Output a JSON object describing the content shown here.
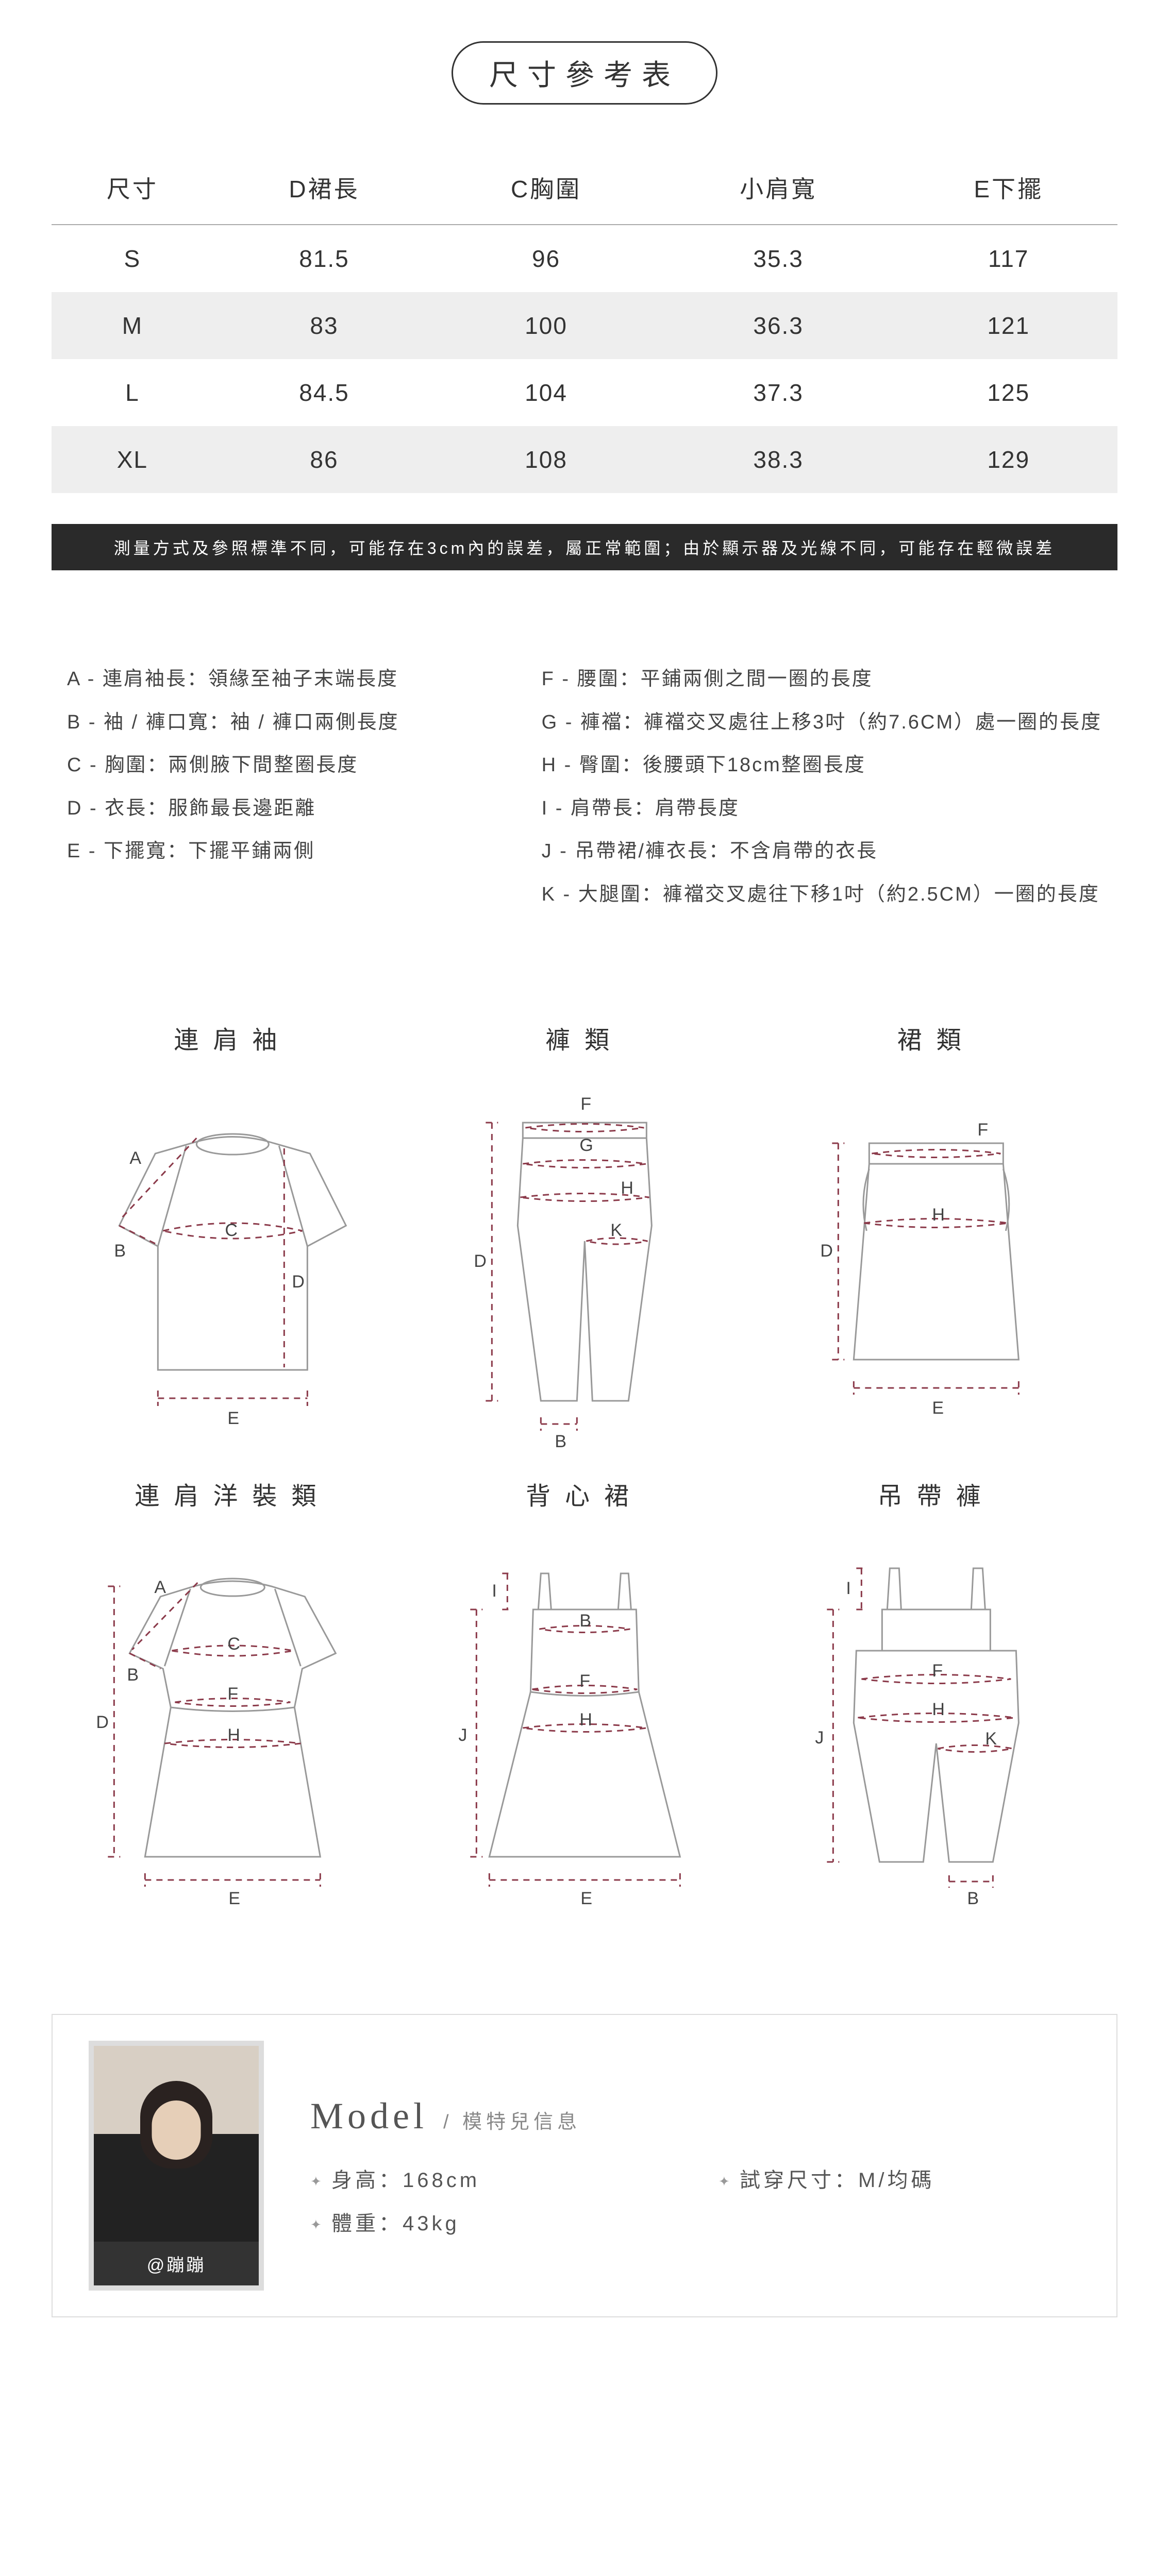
{
  "title": "尺寸參考表",
  "table": {
    "headers": [
      "尺寸",
      "D裙長",
      "C胸圍",
      "小肩寬",
      "E下擺"
    ],
    "rows": [
      {
        "cells": [
          "S",
          "81.5",
          "96",
          "35.3",
          "117"
        ],
        "shade": false
      },
      {
        "cells": [
          "M",
          "83",
          "100",
          "36.3",
          "121"
        ],
        "shade": true
      },
      {
        "cells": [
          "L",
          "84.5",
          "104",
          "37.3",
          "125"
        ],
        "shade": false
      },
      {
        "cells": [
          "XL",
          "86",
          "108",
          "38.3",
          "129"
        ],
        "shade": true
      }
    ]
  },
  "note": "測量方式及參照標準不同，可能存在3cm內的誤差，屬正常範圍；由於顯示器及光線不同，可能存在輕微誤差",
  "defs_left": [
    "A - 連肩袖長：領緣至袖子末端長度",
    "B - 袖 / 褲口寬：袖 / 褲口兩側長度",
    "C - 胸圍：兩側腋下間整圈長度",
    "D - 衣長：服飾最長邊距離",
    "E - 下擺寬：下擺平鋪兩側"
  ],
  "defs_right": [
    "F - 腰圍：平鋪兩側之間一圈的長度",
    "G - 褲襠：褲襠交叉處往上移3吋（約7.6CM）處一圈的長度",
    "H - 臀圍：後腰頭下18cm整圈長度",
    "I - 肩帶長：肩帶長度",
    "J - 吊帶裙/褲衣長：不含肩帶的衣長",
    "K - 大腿圍：褲襠交叉處往下移1吋（約2.5CM）一圈的長度"
  ],
  "diagrams": {
    "raglan_top": "連肩袖",
    "pants": "褲類",
    "skirt": "裙類",
    "raglan_dress": "連肩洋裝類",
    "cami_dress": "背心裙",
    "overalls": "吊帶褲"
  },
  "model": {
    "title": "Model",
    "sub": "/ 模特兒信息",
    "name": "@蹦蹦",
    "height_label": "身高：168cm",
    "weight_label": "體重：43kg",
    "size_label": "試穿尺寸：M/均碼"
  },
  "colors": {
    "measure": "#8b3a4a",
    "garment": "#999999",
    "text": "#333333",
    "shade_row": "#eeeeee",
    "note_bg": "#2a2a2a"
  }
}
